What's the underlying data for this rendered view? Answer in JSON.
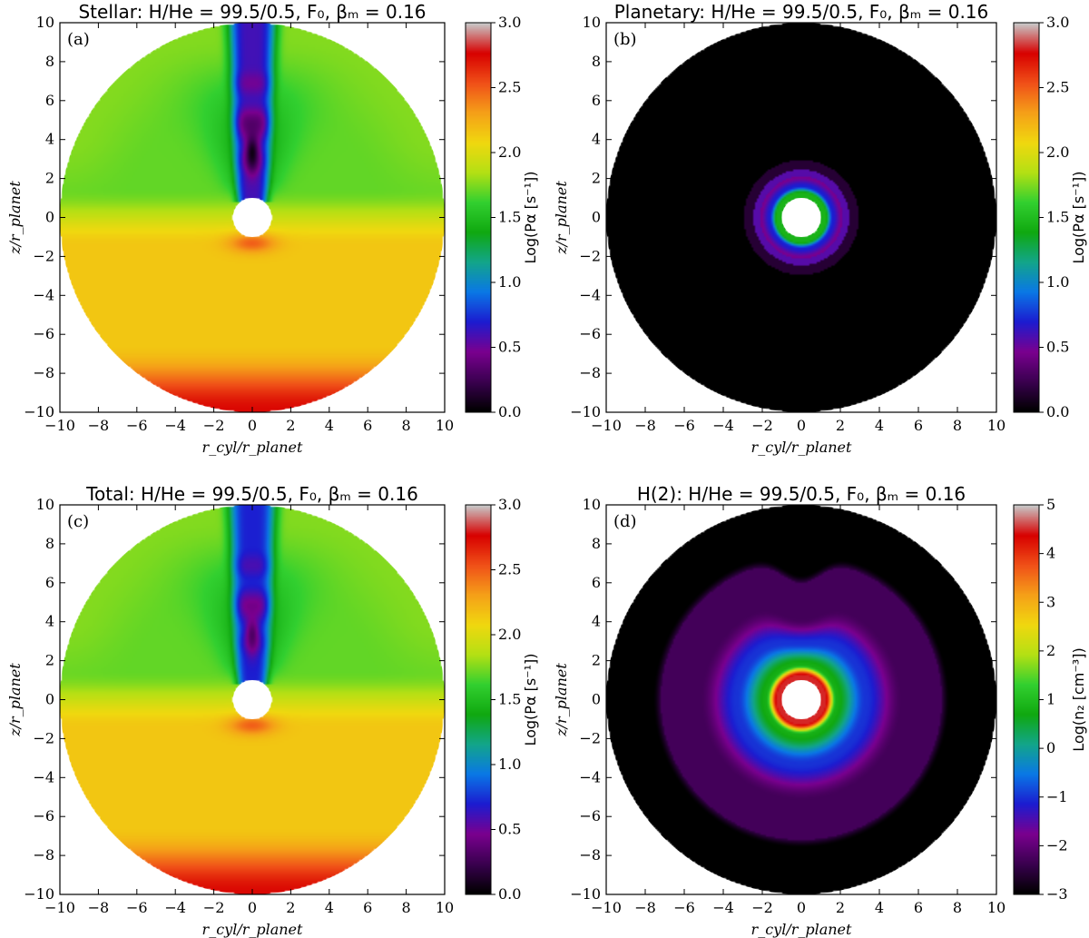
{
  "figure": {
    "colormap_stops": [
      "#000000",
      "#3a0050",
      "#7a008f",
      "#1c1cd0",
      "#0a78e6",
      "#12a58a",
      "#10a810",
      "#32d030",
      "#b4e014",
      "#f0d80f",
      "#f5a018",
      "#f05018",
      "#d80000",
      "#c8c8c8"
    ],
    "colors": {
      "background": "#ffffff",
      "axes": "#000000",
      "planet": "#ffffff"
    }
  },
  "chart_data": [
    {
      "panel": "(a)",
      "type": "heatmap",
      "title": "Stellar: H/He = 99.5/0.5, F₀, βₘ = 0.16",
      "xlabel": "r_cyl/r_planet",
      "ylabel": "z/r_planet",
      "xlim": [
        -10,
        10
      ],
      "ylim": [
        -10,
        10
      ],
      "xticks": [
        "−10",
        "−8",
        "−6",
        "−4",
        "−2",
        "0",
        "2",
        "4",
        "6",
        "8",
        "10"
      ],
      "yticks": [
        "−10",
        "−8",
        "−6",
        "−4",
        "−2",
        "0",
        "2",
        "4",
        "6",
        "8",
        "10"
      ],
      "colorbar": {
        "label": "Log(Pα [s⁻¹])",
        "range": [
          0.0,
          3.0
        ],
        "ticks": [
          "0.0",
          "0.5",
          "1.0",
          "1.5",
          "2.0",
          "2.5",
          "3.0"
        ]
      },
      "field": {
        "kind": "pa_stellar",
        "planet_radius": 1.0,
        "domain_radius": 10.0,
        "upper_value": 1.7,
        "lower_value": 2.15,
        "bottom_edge_value": 2.75,
        "jet_value": 0.6,
        "jet_core_value": 0.05
      }
    },
    {
      "panel": "(b)",
      "type": "heatmap",
      "title": "Planetary: H/He = 99.5/0.5, F₀, βₘ = 0.16",
      "xlabel": "r_cyl/r_planet",
      "ylabel": "z/r_planet",
      "xlim": [
        -10,
        10
      ],
      "ylim": [
        -10,
        10
      ],
      "xticks": [
        "−10",
        "−8",
        "−6",
        "−4",
        "−2",
        "0",
        "2",
        "4",
        "6",
        "8",
        "10"
      ],
      "yticks": [
        "−10",
        "−8",
        "−6",
        "−4",
        "−2",
        "0",
        "2",
        "4",
        "6",
        "8",
        "10"
      ],
      "colorbar": {
        "label": "Log(Pα [s⁻¹])",
        "range": [
          0.0,
          3.0
        ],
        "ticks": [
          "0.0",
          "0.5",
          "1.0",
          "1.5",
          "2.0",
          "2.5",
          "3.0"
        ]
      },
      "field": {
        "kind": "pa_planetary",
        "planet_radius": 1.0,
        "domain_radius": 10.0,
        "inner_value": 1.45,
        "mid_value": 0.7,
        "outer_ring_value": 0.15,
        "background_value": 0.0
      }
    },
    {
      "panel": "(c)",
      "type": "heatmap",
      "title": "Total: H/He = 99.5/0.5, F₀, βₘ = 0.16",
      "xlabel": "r_cyl/r_planet",
      "ylabel": "z/r_planet",
      "xlim": [
        -10,
        10
      ],
      "ylim": [
        -10,
        10
      ],
      "xticks": [
        "−10",
        "−8",
        "−6",
        "−4",
        "−2",
        "0",
        "2",
        "4",
        "6",
        "8",
        "10"
      ],
      "yticks": [
        "−10",
        "−8",
        "−6",
        "−4",
        "−2",
        "0",
        "2",
        "4",
        "6",
        "8",
        "10"
      ],
      "colorbar": {
        "label": "Log(Pα [s⁻¹])",
        "range": [
          0.0,
          3.0
        ],
        "ticks": [
          "0.0",
          "0.5",
          "1.0",
          "1.5",
          "2.0",
          "2.5",
          "3.0"
        ]
      },
      "field": {
        "kind": "pa_total",
        "planet_radius": 1.0,
        "domain_radius": 10.0,
        "upper_value": 1.7,
        "lower_value": 2.15,
        "bottom_edge_value": 2.75,
        "jet_value": 0.7,
        "jet_core_value": 0.3
      }
    },
    {
      "panel": "(d)",
      "type": "heatmap",
      "title": "H(2): H/He = 99.5/0.5, F₀, βₘ = 0.16",
      "xlabel": "r_cyl/r_planet",
      "ylabel": "z/r_planet",
      "xlim": [
        -10,
        10
      ],
      "ylim": [
        -10,
        10
      ],
      "xticks": [
        "−10",
        "−8",
        "−6",
        "−4",
        "−2",
        "0",
        "2",
        "4",
        "6",
        "8",
        "10"
      ],
      "yticks": [
        "−10",
        "−8",
        "−6",
        "−4",
        "−2",
        "0",
        "2",
        "4",
        "6",
        "8",
        "10"
      ],
      "colorbar": {
        "label": "Log(n₂ [cm⁻³])",
        "range": [
          -3,
          5
        ],
        "ticks": [
          "−3",
          "−2",
          "−1",
          "0",
          "1",
          "2",
          "3",
          "4",
          "5"
        ]
      },
      "field": {
        "kind": "n2",
        "planet_radius": 1.0,
        "domain_radius": 10.0,
        "surface_value": 4.5,
        "inner_value": 0.8,
        "mid_value": -1.0,
        "outer_value": -2.3,
        "background_value": -3.0
      }
    }
  ]
}
